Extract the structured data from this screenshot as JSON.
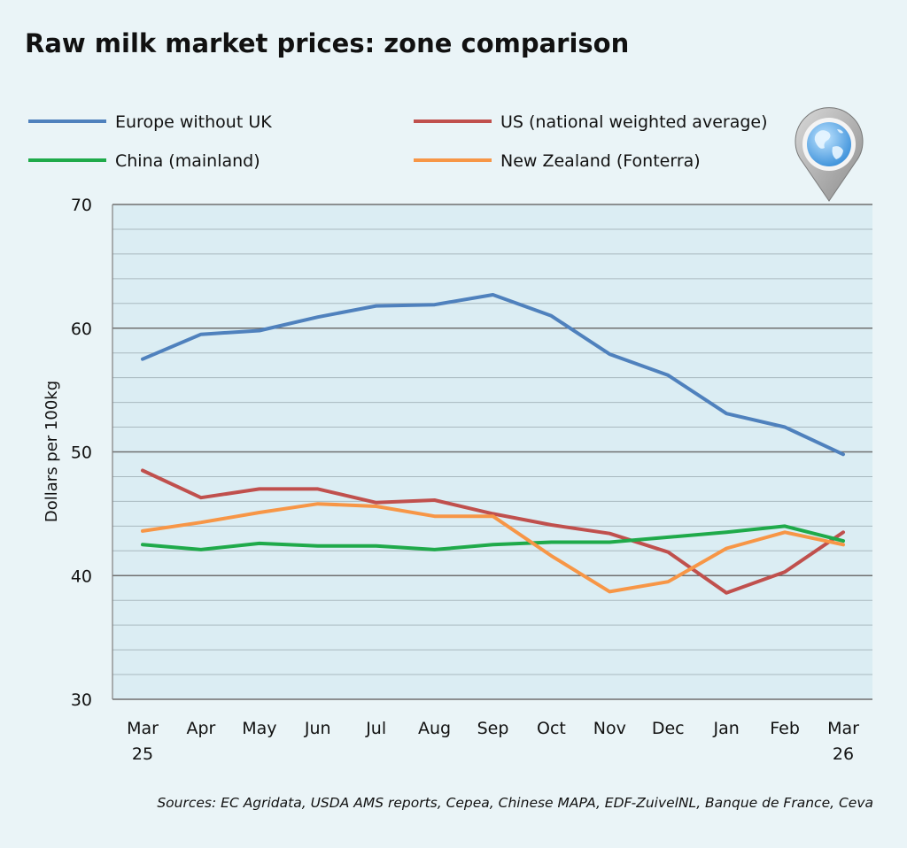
{
  "chart_data": {
    "type": "line",
    "title": "Raw milk market prices: zone comparison",
    "ylabel": "Dollars per 100kg",
    "xlabel": "",
    "ylim": [
      30,
      70
    ],
    "yticks": [
      30,
      40,
      50,
      60,
      70
    ],
    "grid": true,
    "legend_position": "top",
    "categories": [
      [
        "Mar",
        "25"
      ],
      [
        "Apr"
      ],
      [
        "May"
      ],
      [
        "Jun"
      ],
      [
        "Jul"
      ],
      [
        "Aug"
      ],
      [
        "Sep"
      ],
      [
        "Oct"
      ],
      [
        "Nov"
      ],
      [
        "Dec"
      ],
      [
        "Jan"
      ],
      [
        "Feb"
      ],
      [
        "Mar",
        "26"
      ]
    ],
    "series": [
      {
        "name": "Europe without UK",
        "color": "#4f81bd",
        "values": [
          57.5,
          59.5,
          59.8,
          60.9,
          61.8,
          61.9,
          62.7,
          61.0,
          57.9,
          56.2,
          53.1,
          52.0,
          49.8
        ]
      },
      {
        "name": "US (national weighted average)",
        "color": "#c0504d",
        "values": [
          48.5,
          46.3,
          47.0,
          47.0,
          45.9,
          46.1,
          45.0,
          44.1,
          43.4,
          41.9,
          38.6,
          40.3,
          43.5
        ]
      },
      {
        "name": "China (mainland)",
        "color": "#1faa4a",
        "values": [
          42.5,
          42.1,
          42.6,
          42.4,
          42.4,
          42.1,
          42.5,
          42.7,
          42.7,
          43.1,
          43.5,
          44.0,
          42.8
        ]
      },
      {
        "name": "New Zealand (Fonterra)",
        "color": "#f79646",
        "values": [
          43.6,
          44.3,
          45.1,
          45.8,
          45.6,
          44.8,
          44.8,
          41.6,
          38.7,
          39.5,
          42.2,
          43.5,
          42.5
        ]
      }
    ],
    "source": "Sources: EC Agridata, USDA AMS reports, Cepea, Chinese MAPA, EDF-ZuivelNL, Banque de France, Ceva"
  },
  "icons": {
    "globe": "globe-map-pin-icon"
  }
}
